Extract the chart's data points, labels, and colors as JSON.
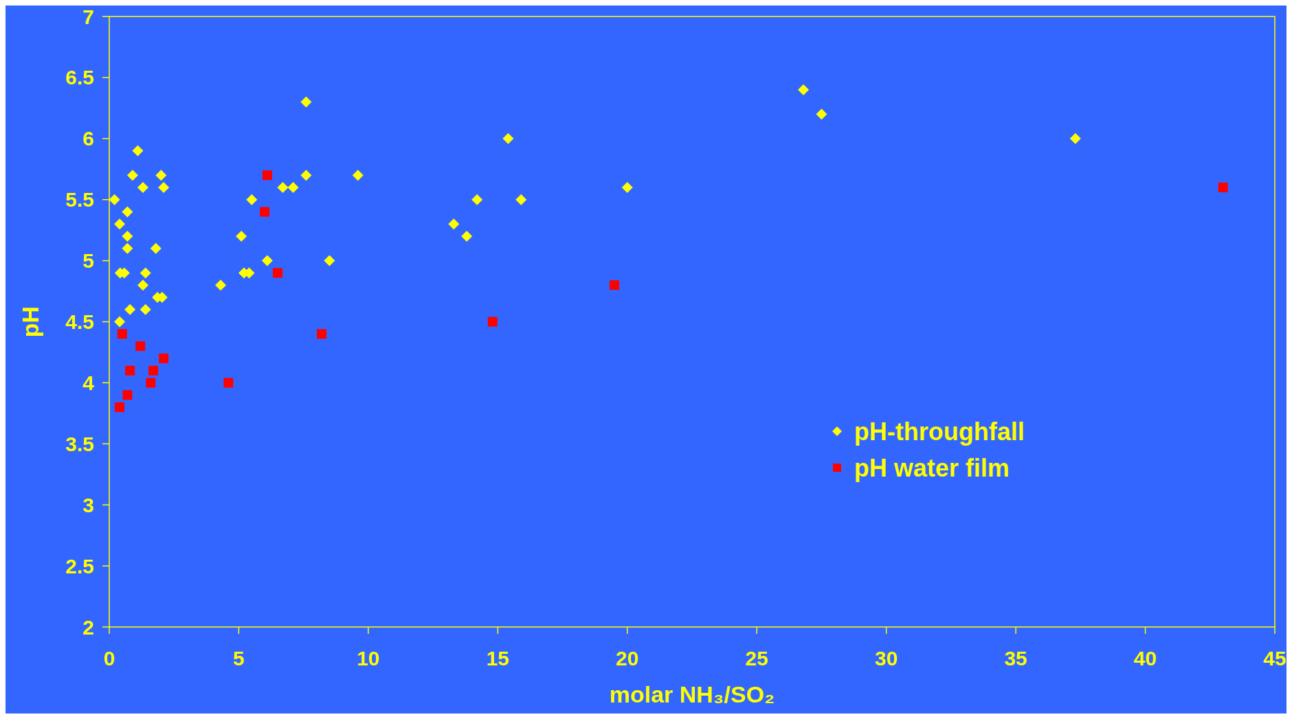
{
  "chart_data": {
    "type": "scatter",
    "xlabel": "molar NH₃/SO₂",
    "ylabel": "pH",
    "xlim": [
      0,
      45
    ],
    "ylim": [
      2,
      7
    ],
    "xticks": [
      0,
      5,
      10,
      15,
      20,
      25,
      30,
      35,
      40,
      45
    ],
    "yticks": [
      2,
      2.5,
      3,
      3.5,
      4,
      4.5,
      5,
      5.5,
      6,
      6.5,
      7
    ],
    "grid": false,
    "legend": "right",
    "series": [
      {
        "name": "pH-throughfall",
        "color": "#ffff00",
        "marker": "diamond",
        "x": [
          0.2,
          0.4,
          0.42,
          0.58,
          0.4,
          0.7,
          0.7,
          0.7,
          0.8,
          0.9,
          1.1,
          1.3,
          1.3,
          1.4,
          1.4,
          1.8,
          1.86,
          2.04,
          2.0,
          2.1,
          4.3,
          5.1,
          5.2,
          5.4,
          5.5,
          6.1,
          6.7,
          7.1,
          7.6,
          7.6,
          8.5,
          9.6,
          13.3,
          13.8,
          14.2,
          15.4,
          15.9,
          20.0,
          26.8,
          27.5,
          37.3
        ],
        "values": [
          5.5,
          5.3,
          4.9,
          4.9,
          4.5,
          5.4,
          5.2,
          5.1,
          4.6,
          5.7,
          5.9,
          5.6,
          4.8,
          4.9,
          4.6,
          5.1,
          4.7,
          4.7,
          5.7,
          5.6,
          4.8,
          5.2,
          4.9,
          4.9,
          5.5,
          5.0,
          5.6,
          5.6,
          6.3,
          5.7,
          5.0,
          5.7,
          5.3,
          5.2,
          5.5,
          6.0,
          5.5,
          5.6,
          6.4,
          6.2,
          6.0
        ]
      },
      {
        "name": "pH water film",
        "color": "#ff0000",
        "marker": "square",
        "x": [
          0.4,
          0.5,
          0.7,
          0.8,
          1.2,
          1.6,
          1.7,
          2.1,
          4.6,
          6.0,
          6.1,
          6.5,
          8.2,
          14.8,
          19.5,
          43.0
        ],
        "values": [
          3.8,
          4.4,
          3.9,
          4.1,
          4.3,
          4.0,
          4.1,
          4.2,
          4.0,
          5.4,
          5.7,
          4.9,
          4.4,
          4.5,
          4.8,
          5.6
        ]
      }
    ]
  }
}
